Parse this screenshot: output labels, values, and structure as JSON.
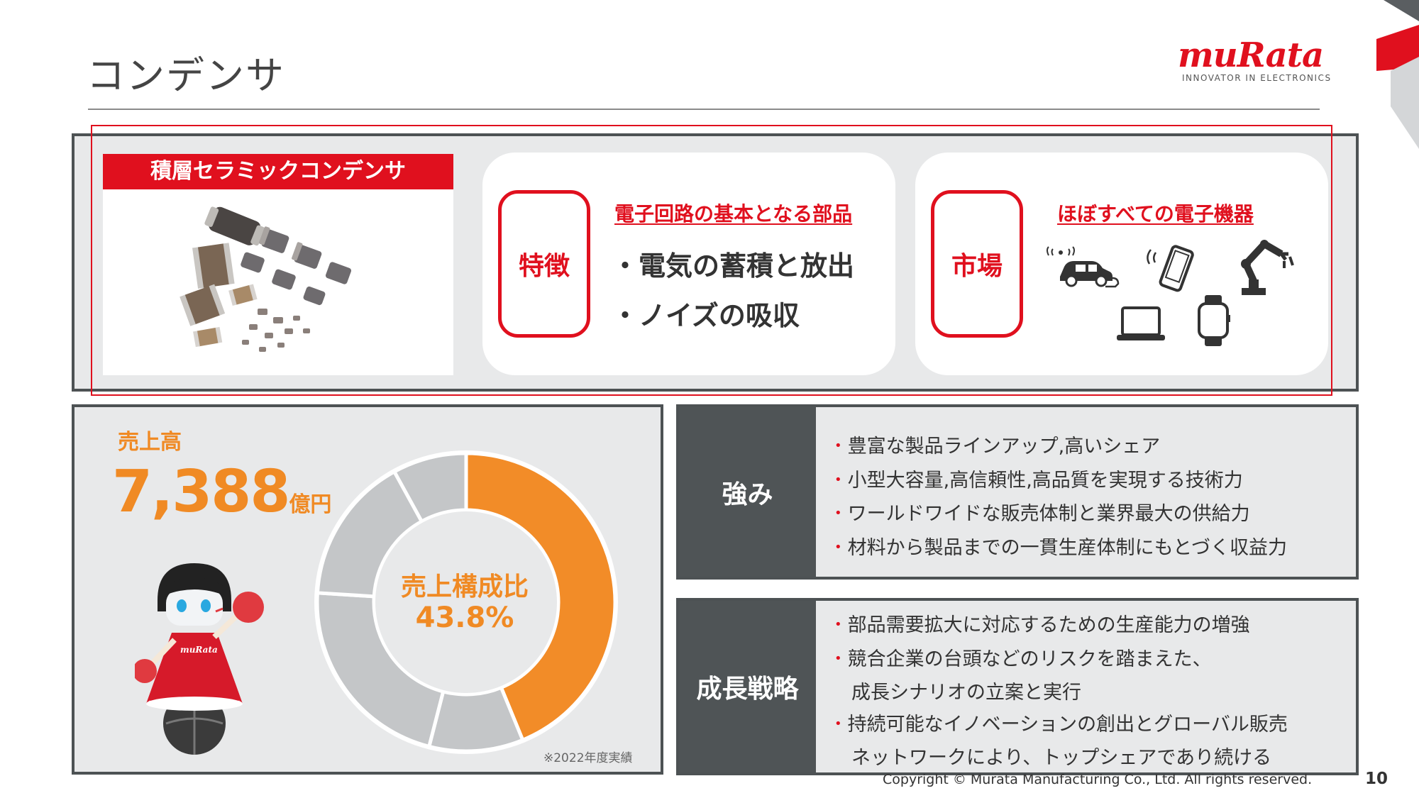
{
  "header": {
    "title": "コンデンサ",
    "logo_word": "muRata",
    "logo_tagline": "INNOVATOR IN ELECTRONICS"
  },
  "product": {
    "name": "積層セラミックコンデンサ"
  },
  "features": {
    "tag": "特徴",
    "heading": "電子回路の基本となる部品",
    "bullets": [
      "・電気の蓄積と放出",
      "・ノイズの吸収"
    ]
  },
  "market": {
    "tag": "市場",
    "heading": "ほぼすべての電子機器",
    "icons": [
      "connected-car-icon",
      "smartphone-icon",
      "robot-arm-icon",
      "laptop-icon",
      "smartwatch-icon"
    ]
  },
  "sales": {
    "label": "売上高",
    "value": "7,388",
    "unit": "億円",
    "ratio_label": "売上構成比",
    "ratio_value": "43.8%",
    "note": "※2022年度実績"
  },
  "chart_data": {
    "type": "pie",
    "values": [
      43.8,
      10.2,
      22.0,
      16.0,
      8.0
    ],
    "colors": [
      "#f28c28",
      "#c4c6c8",
      "#c4c6c8",
      "#c4c6c8",
      "#c4c6c8"
    ],
    "highlight_label": "売上構成比 43.8%"
  },
  "strengths": {
    "label": "強み",
    "items": [
      "豊富な製品ラインアップ,高いシェア",
      "小型大容量,高信頼性,高品質を実現する技術力",
      "ワールドワイドな販売体制と業界最大の供給力",
      "材料から製品までの一貫生産体制にもとづく収益力"
    ]
  },
  "growth": {
    "label": "成長戦略",
    "lines": [
      {
        "bullet": true,
        "text": "部品需要拡大に対応するための生産能力の増強"
      },
      {
        "bullet": true,
        "text": "競合企業の台頭などのリスクを踏まえた、"
      },
      {
        "bullet": false,
        "text": "成長シナリオの立案と実行"
      },
      {
        "bullet": true,
        "text": "持続可能なイノベーションの創出とグローバル販売"
      },
      {
        "bullet": false,
        "text": "ネットワークにより、トップシェアであり続ける"
      }
    ]
  },
  "footer": {
    "copyright": "Copyright © Murata Manufacturing Co., Ltd. All rights reserved.",
    "page_number": "10"
  },
  "colors": {
    "accent_red": "#e0101e",
    "accent_orange": "#f08a24",
    "panel_gray": "#e8e9ea",
    "dark_label": "#4f5456"
  }
}
